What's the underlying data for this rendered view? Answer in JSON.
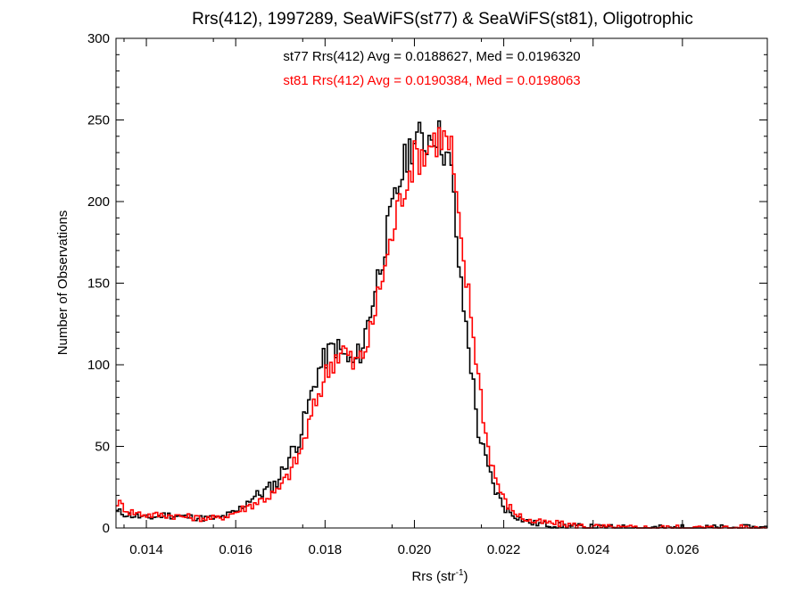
{
  "chart_data": {
    "type": "line",
    "title": "Rrs(412), 1997289, SeaWiFS(st77) & SeaWiFS(st81), Oligotrophic",
    "xlabel": "Rrs (str",
    "xlabel_sup": "-1",
    "xlabel_end": ")",
    "ylabel": "Number of Observations",
    "xlim": [
      0.01332,
      0.0279
    ],
    "ylim": [
      0,
      300
    ],
    "x_ticks": [
      0.014,
      0.016,
      0.018,
      0.02,
      0.022,
      0.024,
      0.026
    ],
    "x_tick_labels": [
      "0.014",
      "0.016",
      "0.018",
      "0.020",
      "0.022",
      "0.024",
      "0.026"
    ],
    "y_ticks": [
      0,
      50,
      100,
      150,
      200,
      250,
      300
    ],
    "y_tick_labels": [
      "0",
      "50",
      "100",
      "150",
      "200",
      "250",
      "300"
    ],
    "grid": false,
    "annotations": [
      {
        "text": "st77 Rrs(412) Avg = 0.0188627, Med = 0.0196320",
        "color": "#000000"
      },
      {
        "text": "st81 Rrs(412) Avg = 0.0190384, Med = 0.0198063",
        "color": "#ff0000"
      }
    ],
    "series": [
      {
        "color": "#000000",
        "x": [
          0.01332,
          0.0136,
          0.014,
          0.0144,
          0.0148,
          0.0152,
          0.0156,
          0.016,
          0.0163,
          0.0166,
          0.0169,
          0.0171,
          0.0174,
          0.0176,
          0.0178,
          0.018,
          0.0182,
          0.0184,
          0.0186,
          0.0188,
          0.019,
          0.0192,
          0.0194,
          0.0196,
          0.0198,
          0.02,
          0.0202,
          0.0204,
          0.0206,
          0.0208,
          0.021,
          0.0212,
          0.0214,
          0.0216,
          0.0218,
          0.022,
          0.0222,
          0.0224,
          0.0226,
          0.023,
          0.0234,
          0.0238,
          0.0245,
          0.0279
        ],
        "values": [
          10,
          8,
          6,
          8,
          7,
          6,
          6,
          10,
          18,
          22,
          28,
          40,
          55,
          75,
          95,
          105,
          112,
          105,
          100,
          110,
          135,
          160,
          185,
          208,
          228,
          240,
          235,
          245,
          236,
          218,
          150,
          110,
          60,
          38,
          22,
          12,
          8,
          5,
          3,
          2,
          1,
          0.5,
          0,
          0
        ]
      },
      {
        "color": "#ff0000",
        "x": [
          0.01332,
          0.0136,
          0.014,
          0.0144,
          0.0148,
          0.0152,
          0.0156,
          0.016,
          0.0163,
          0.0166,
          0.0169,
          0.0171,
          0.0174,
          0.0176,
          0.0178,
          0.018,
          0.0182,
          0.0184,
          0.0186,
          0.0188,
          0.019,
          0.0192,
          0.0194,
          0.0196,
          0.0198,
          0.02,
          0.0202,
          0.0204,
          0.0206,
          0.0208,
          0.021,
          0.0212,
          0.0214,
          0.0216,
          0.0218,
          0.022,
          0.0222,
          0.0224,
          0.0226,
          0.023,
          0.0234,
          0.0238,
          0.0245,
          0.0279
        ],
        "values": [
          16,
          10,
          8,
          8,
          7,
          6,
          6,
          10,
          14,
          18,
          22,
          30,
          45,
          62,
          80,
          95,
          105,
          110,
          100,
          105,
          120,
          148,
          170,
          195,
          215,
          228,
          230,
          238,
          240,
          232,
          175,
          140,
          95,
          52,
          30,
          16,
          10,
          6,
          4,
          3,
          2,
          1,
          0,
          0
        ]
      }
    ]
  }
}
